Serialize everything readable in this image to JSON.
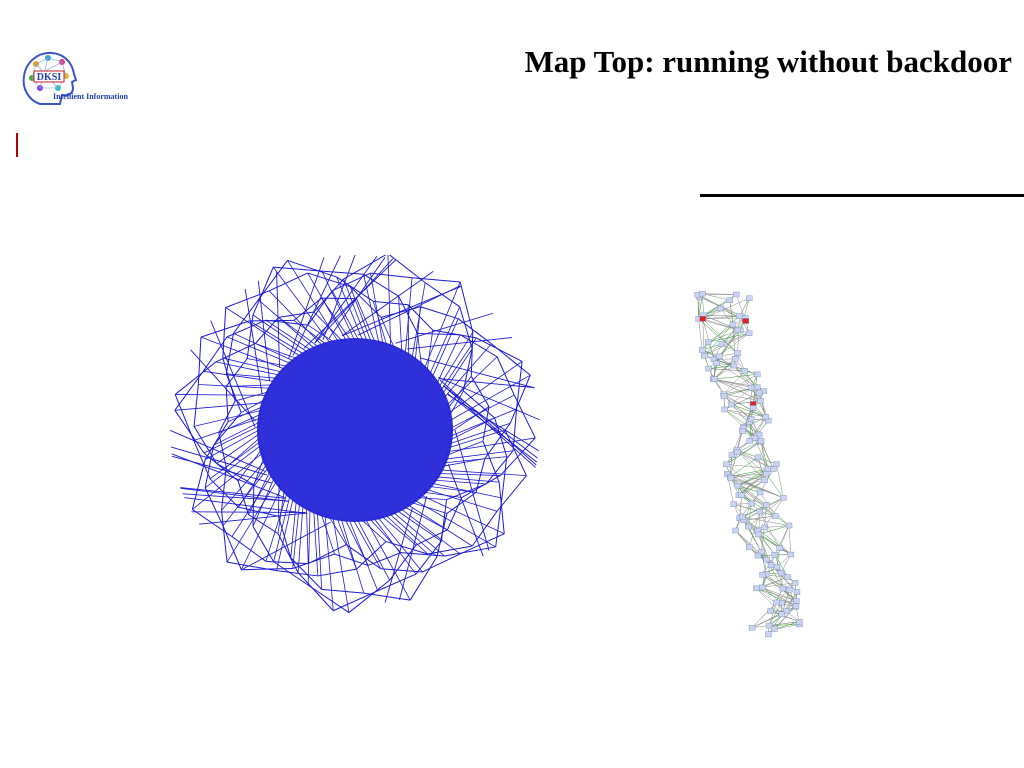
{
  "slide": {
    "title": "Map Top: running without backdoor"
  },
  "logo": {
    "acronym": "DKSI",
    "caption": "Intellient Information"
  },
  "colors": {
    "edge_blue": "#1a1ad6",
    "node_fill": "#c9d3f2",
    "green_edge": "#2f9a2f",
    "red_node": "#e02020",
    "rule": "#000000",
    "accent_red": "#b00000"
  },
  "figures": [
    {
      "id": "graph-left",
      "description": "dense circular network of blue edges"
    },
    {
      "id": "graph-right",
      "description": "vertical chain network with light nodes and green edges"
    }
  ]
}
